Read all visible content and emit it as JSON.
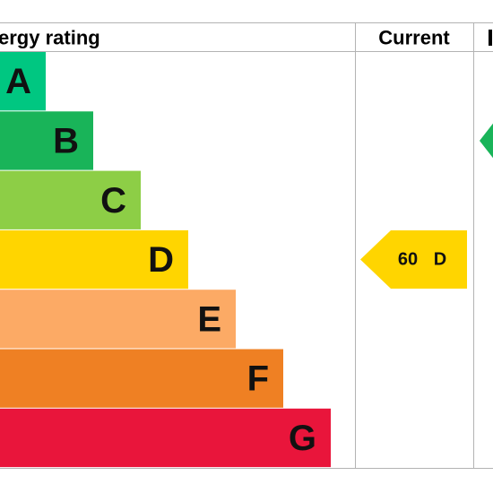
{
  "header": {
    "rating": "ergy rating",
    "current": "Current"
  },
  "bands": [
    {
      "letter": "A",
      "color": "#00c781"
    },
    {
      "letter": "B",
      "color": "#19b459"
    },
    {
      "letter": "C",
      "color": "#8dce46"
    },
    {
      "letter": "D",
      "color": "#ffd500"
    },
    {
      "letter": "E",
      "color": "#fcaa65"
    },
    {
      "letter": "F",
      "color": "#ef8023"
    },
    {
      "letter": "G",
      "color": "#e9153b"
    }
  ],
  "current": {
    "score": 60,
    "band": "D",
    "color": "#ffd500"
  },
  "potential": {
    "color": "#19b459"
  }
}
